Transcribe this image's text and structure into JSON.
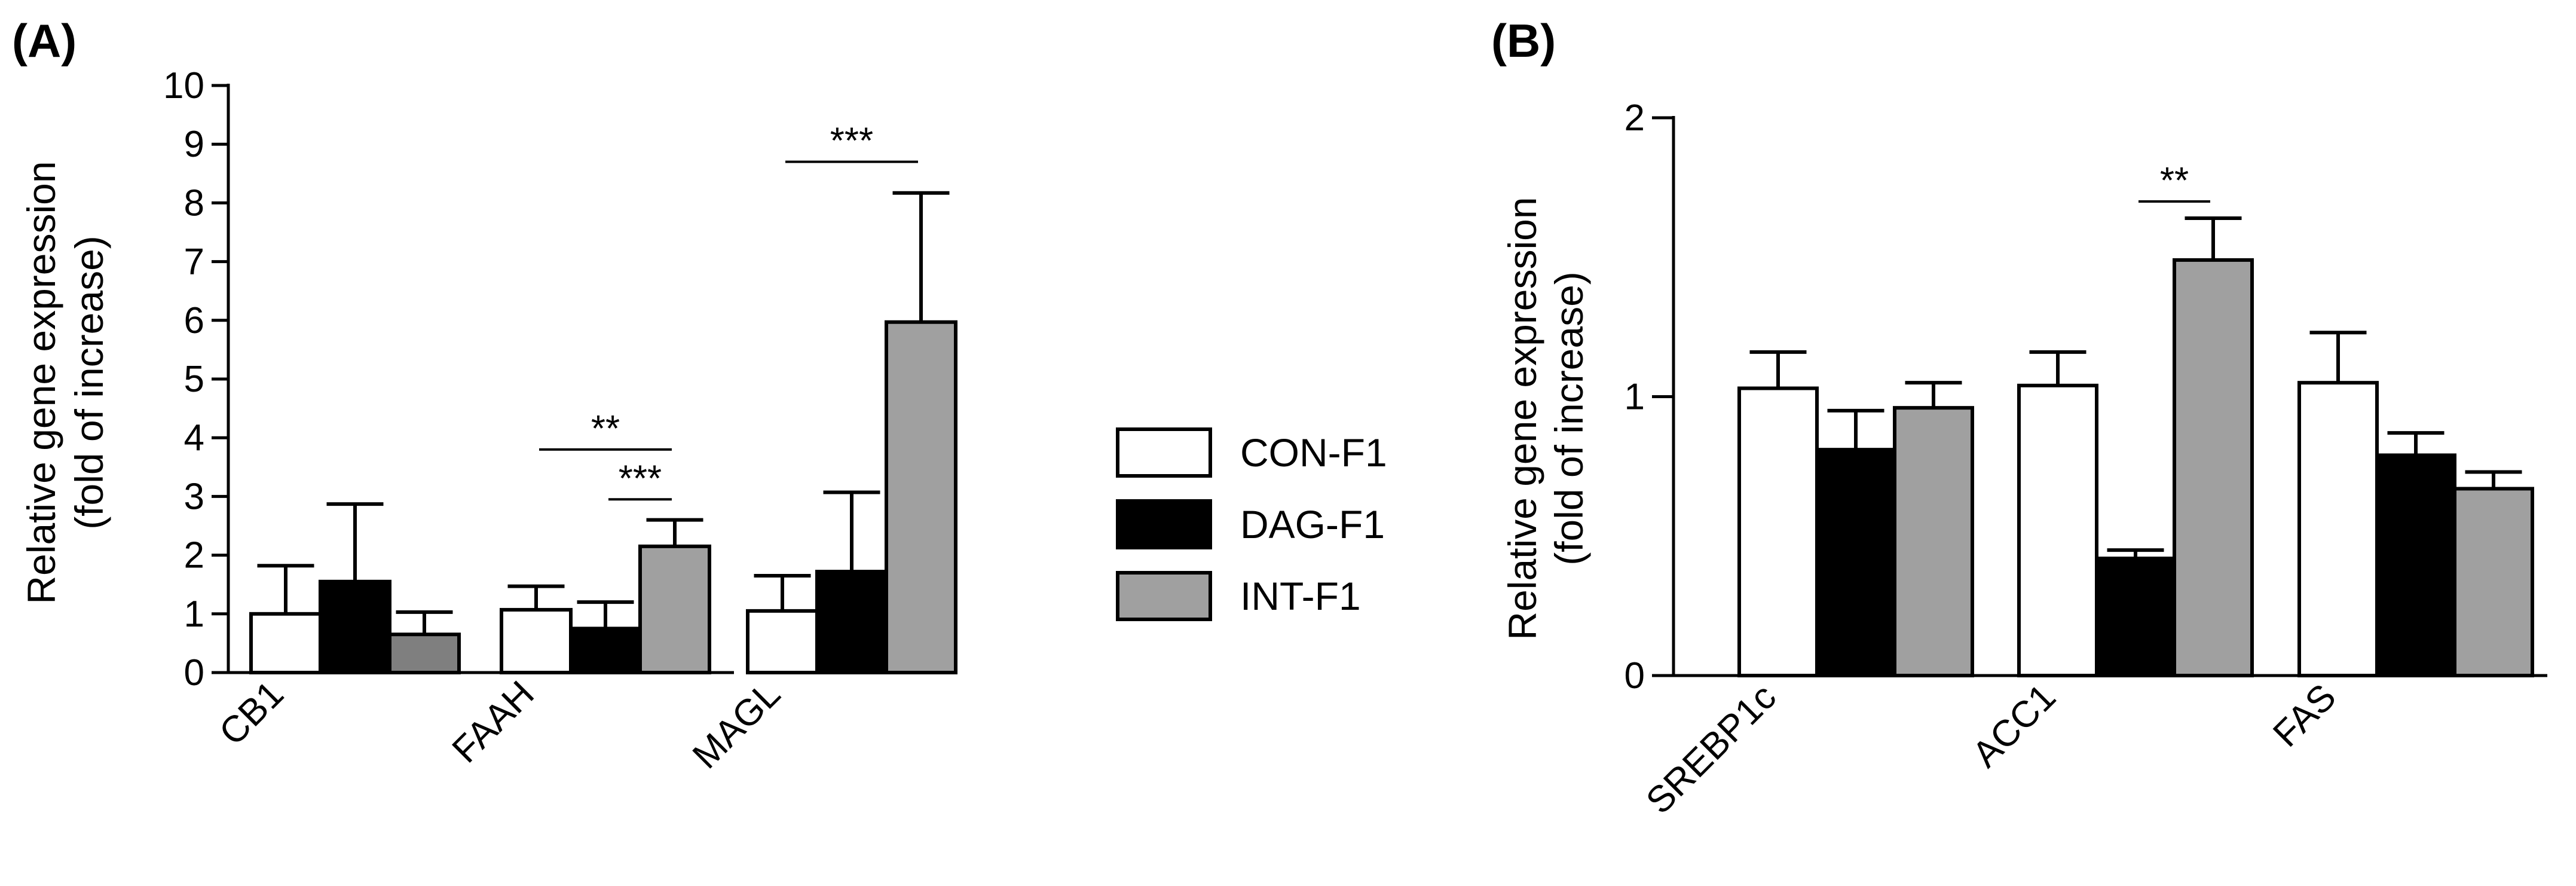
{
  "chart_data": [
    {
      "panel": "(A)",
      "type": "bar",
      "ylabel_line1": "Relative gene expression",
      "ylabel_line2": "(fold of increase)",
      "ylim": [
        0,
        10
      ],
      "yticks": [
        "0",
        "1",
        "2",
        "3",
        "4",
        "5",
        "6",
        "7",
        "8",
        "9",
        "10"
      ],
      "categories": [
        "CB1",
        "FAAH",
        "MAGL"
      ],
      "series": [
        {
          "name": "CON-F1",
          "color": "#ffffff",
          "values": [
            1.0,
            1.07,
            1.05
          ],
          "errors": [
            0.82,
            0.4,
            0.6
          ]
        },
        {
          "name": "DAG-F1",
          "color": "#000000",
          "values": [
            1.55,
            0.75,
            1.72
          ],
          "errors": [
            1.32,
            0.45,
            1.35
          ]
        },
        {
          "name": "INT-F1",
          "color": "#a0a0a0",
          "values": [
            0.65,
            2.15,
            5.97
          ],
          "errors": [
            0.38,
            0.45,
            2.2
          ]
        }
      ],
      "bar_colors_override": [
        [
          "#ffffff",
          "#000000",
          "#7f7f7f"
        ]
      ],
      "significance": [
        {
          "label": "**",
          "group": 1,
          "from_series": 0,
          "to_series": 2,
          "y": 3.8
        },
        {
          "label": "***",
          "group": 1,
          "from_series": 1,
          "to_series": 2,
          "y": 2.95
        },
        {
          "label": "***",
          "group": 2,
          "from_series": 0,
          "to_series": 2,
          "y": 8.7
        }
      ]
    },
    {
      "panel": "(B)",
      "type": "bar",
      "ylabel_line1": "Relative gene expression",
      "ylabel_line2": "(fold of increase)",
      "ylim": [
        0,
        2
      ],
      "yticks": [
        "0",
        "1",
        "2"
      ],
      "categories": [
        "SREBP1c",
        "ACC1",
        "FAS"
      ],
      "series": [
        {
          "name": "CON-F1",
          "color": "#ffffff",
          "values": [
            1.03,
            1.04,
            1.05
          ],
          "errors": [
            0.13,
            0.12,
            0.18
          ]
        },
        {
          "name": "DAG-F1",
          "color": "#000000",
          "values": [
            0.81,
            0.42,
            0.79
          ],
          "errors": [
            0.14,
            0.03,
            0.08
          ]
        },
        {
          "name": "INT-F1",
          "color": "#a0a0a0",
          "values": [
            0.96,
            1.49,
            0.67
          ],
          "errors": [
            0.09,
            0.15,
            0.06
          ]
        }
      ],
      "significance": [
        {
          "label": "**",
          "group": 1,
          "from_series": 1,
          "to_series": 2,
          "y": 1.7
        }
      ]
    }
  ],
  "legend": {
    "items": [
      {
        "label": "CON-F1",
        "color": "#ffffff"
      },
      {
        "label": "DAG-F1",
        "color": "#000000"
      },
      {
        "label": "INT-F1",
        "color": "#a0a0a0"
      }
    ]
  }
}
